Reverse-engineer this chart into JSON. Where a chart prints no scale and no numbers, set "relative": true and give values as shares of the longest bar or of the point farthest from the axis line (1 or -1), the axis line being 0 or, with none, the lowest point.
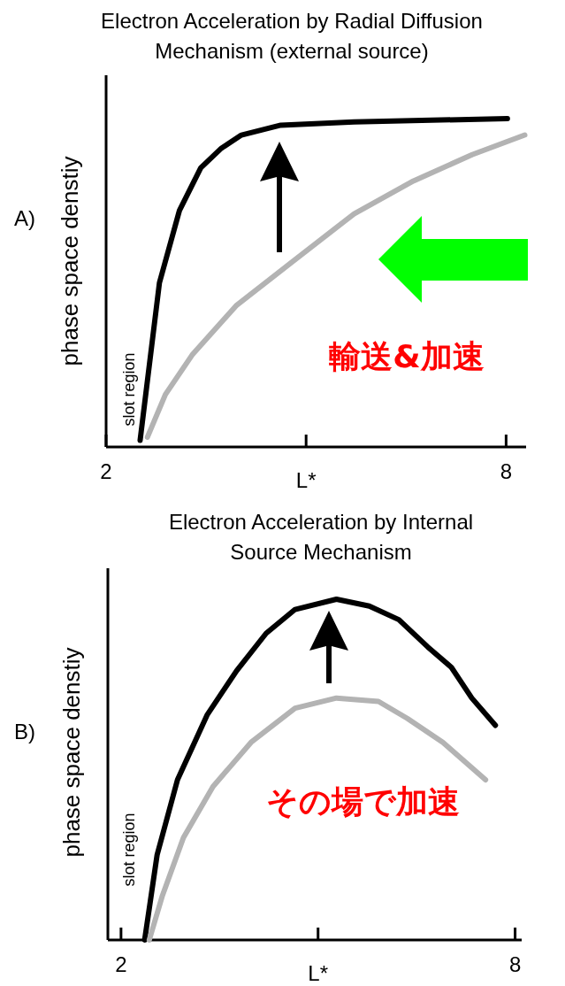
{
  "chart_data": [
    {
      "type": "line",
      "title": "Electron Acceleration by Radial Diffusion Mechanism (external source)",
      "xlabel": "L*",
      "ylabel": "phase space denstiy",
      "relative": true,
      "xlim": [
        2,
        8.3
      ],
      "xticks": [
        {
          "value": 2,
          "label": "2"
        },
        {
          "value": 5,
          "label": null
        },
        {
          "value": 8,
          "label": "8"
        }
      ],
      "annotations": [
        "A)",
        "slot region",
        "輸送&加速"
      ],
      "series": [
        {
          "color": "#000000",
          "x": [
            2.51,
            2.8,
            3.1,
            3.42,
            3.73,
            4.03,
            4.62,
            5.72,
            8.02
          ],
          "values": [
            0.02,
            0.5,
            0.72,
            0.85,
            0.91,
            0.95,
            0.98,
            0.99,
            1.0
          ]
        },
        {
          "color": "#b3b3b3",
          "x": [
            2.62,
            2.89,
            3.29,
            3.95,
            4.83,
            5.72,
            6.61,
            7.49,
            8.28
          ],
          "values": [
            0.03,
            0.16,
            0.28,
            0.43,
            0.57,
            0.71,
            0.81,
            0.89,
            0.95
          ]
        }
      ]
    },
    {
      "type": "line",
      "title": "Electron Acceleration by Internal Source Mechanism",
      "xlabel": "L*",
      "ylabel": "phase space denstiy",
      "relative": true,
      "xlim": [
        1.8,
        8.1
      ],
      "xticks": [
        {
          "value": 2,
          "label": "2"
        },
        {
          "value": 5,
          "label": null
        },
        {
          "value": 8,
          "label": "8"
        }
      ],
      "annotations": [
        "B)",
        "slot region",
        "その場で加速"
      ],
      "series": [
        {
          "color": "#000000",
          "x": [
            2.36,
            2.55,
            2.86,
            3.31,
            3.76,
            4.21,
            4.65,
            5.28,
            5.78,
            6.23,
            6.67,
            7.03,
            7.34,
            7.7
          ],
          "values": [
            0.0,
            0.25,
            0.47,
            0.66,
            0.79,
            0.9,
            0.97,
            1.0,
            0.98,
            0.94,
            0.86,
            0.8,
            0.71,
            0.63
          ]
        },
        {
          "color": "#b3b3b3",
          "x": [
            2.43,
            2.63,
            2.95,
            3.4,
            3.98,
            4.65,
            5.28,
            5.92,
            6.36,
            6.9,
            7.55
          ],
          "values": [
            0.0,
            0.13,
            0.3,
            0.45,
            0.58,
            0.68,
            0.71,
            0.7,
            0.65,
            0.58,
            0.47
          ]
        }
      ]
    }
  ]
}
